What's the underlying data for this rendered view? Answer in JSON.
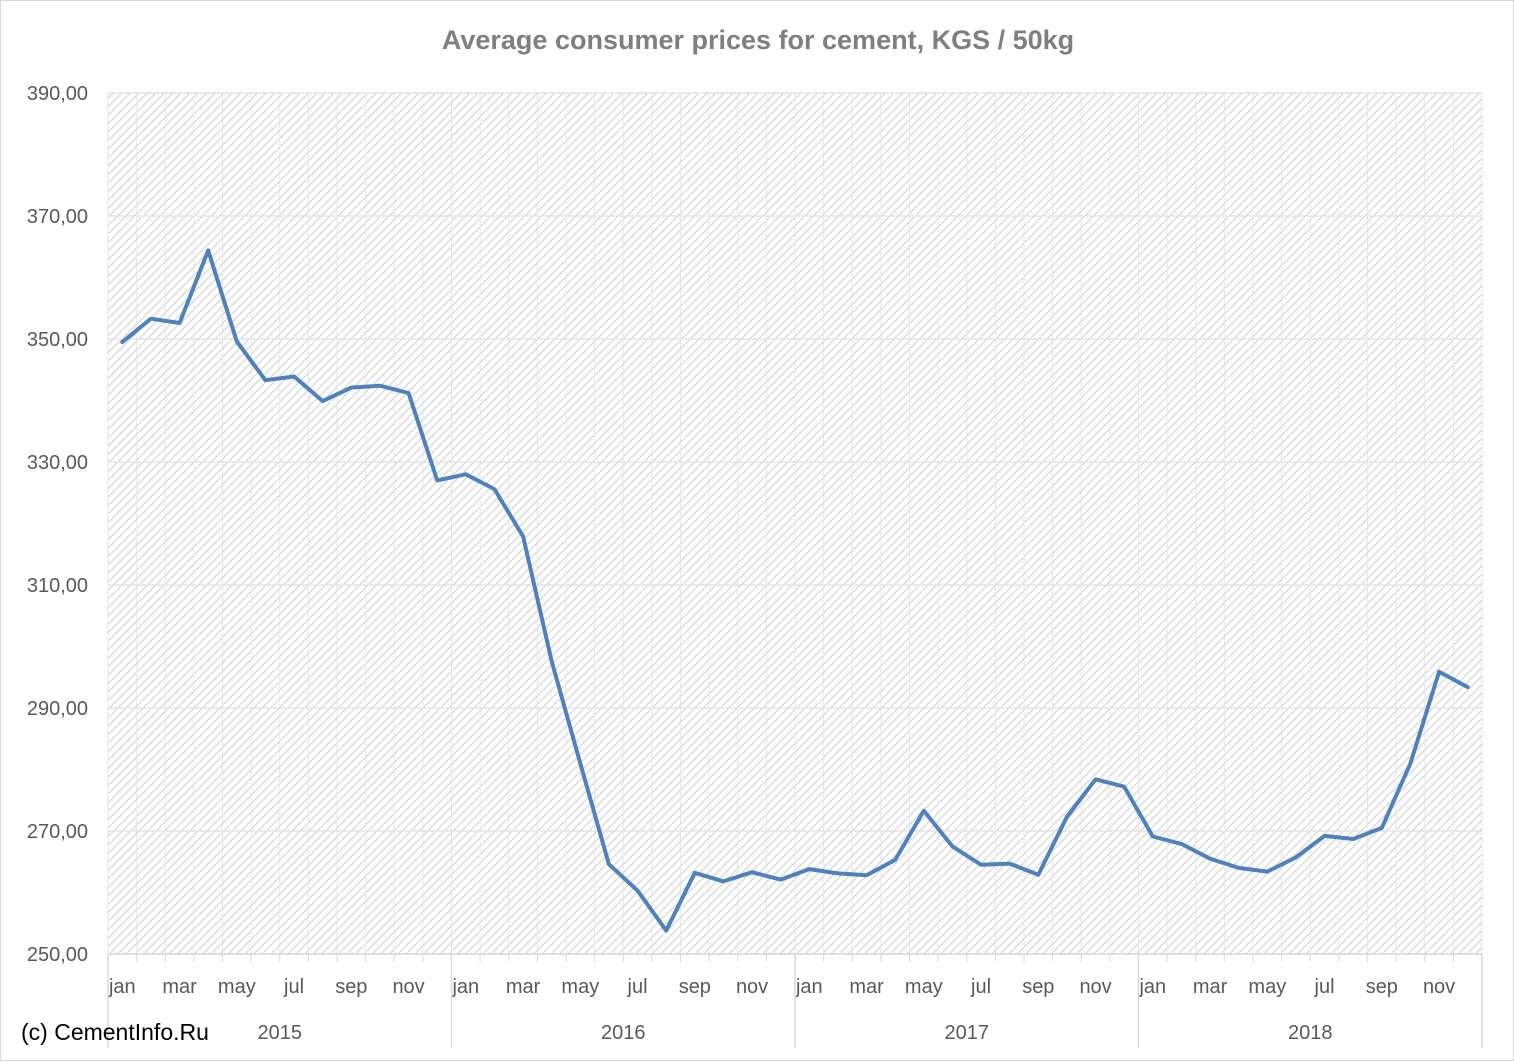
{
  "title": "Average consumer prices for cement, KGS / 50kg",
  "copyright": "(c) CementInfo.Ru",
  "chart_data": {
    "type": "line",
    "title": "Average consumer prices for cement, KGS / 50kg",
    "ylim": [
      250,
      390
    ],
    "yticks": [
      "250,00",
      "270,00",
      "290,00",
      "310,00",
      "330,00",
      "350,00",
      "370,00",
      "390,00"
    ],
    "ytick_values": [
      250,
      270,
      290,
      310,
      330,
      350,
      370,
      390
    ],
    "grid": true,
    "month_labels": [
      "jan",
      "mar",
      "may",
      "jul",
      "sep",
      "nov"
    ],
    "years": [
      "2015",
      "2016",
      "2017",
      "2018"
    ],
    "line_color": "#4f81bd",
    "x": [
      "2015-01",
      "2015-02",
      "2015-03",
      "2015-04",
      "2015-05",
      "2015-06",
      "2015-07",
      "2015-08",
      "2015-09",
      "2015-10",
      "2015-11",
      "2015-12",
      "2016-01",
      "2016-02",
      "2016-03",
      "2016-04",
      "2016-05",
      "2016-06",
      "2016-07",
      "2016-08",
      "2016-09",
      "2016-10",
      "2016-11",
      "2016-12",
      "2017-01",
      "2017-02",
      "2017-03",
      "2017-04",
      "2017-05",
      "2017-06",
      "2017-07",
      "2017-08",
      "2017-09",
      "2017-10",
      "2017-11",
      "2017-12",
      "2018-01",
      "2018-02",
      "2018-03",
      "2018-04",
      "2018-05",
      "2018-06",
      "2018-07",
      "2018-08",
      "2018-09",
      "2018-10",
      "2018-11",
      "2018-12"
    ],
    "series": [
      {
        "values": [
          349.5,
          353.3,
          352.6,
          364.4,
          349.6,
          343.3,
          343.9,
          339.9,
          342.1,
          342.4,
          341.2,
          327.0,
          328.0,
          325.6,
          317.9,
          297.6,
          281.0,
          264.6,
          260.3,
          253.8,
          263.2,
          261.8,
          263.3,
          262.1,
          263.8,
          263.1,
          262.8,
          265.3,
          273.3,
          267.5,
          264.5,
          264.7,
          262.9,
          272.3,
          278.4,
          277.2,
          269.1,
          267.9,
          265.5,
          264.0,
          263.4,
          265.7,
          269.2,
          268.7,
          270.5,
          281.0,
          295.9,
          293.4
        ]
      }
    ]
  }
}
